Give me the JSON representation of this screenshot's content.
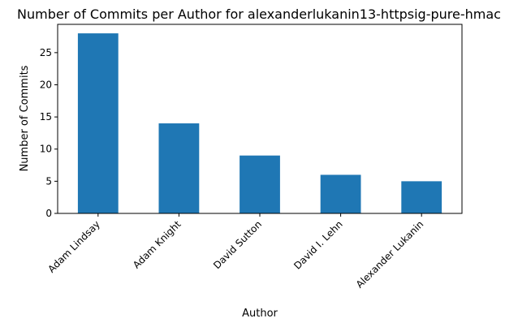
{
  "chart_data": {
    "type": "bar",
    "title": "Number of Commits per Author for alexanderlukanin13-httpsig-pure-hmac",
    "xlabel": "Author",
    "ylabel": "Number of Commits",
    "categories": [
      "Adam Lindsay",
      "Adam Knight",
      "David Sutton",
      "David I. Lehn",
      "Alexander Lukanin"
    ],
    "values": [
      28,
      14,
      9,
      6,
      5
    ],
    "ylim": [
      0,
      29.4
    ],
    "yticks": [
      0,
      5,
      10,
      15,
      20,
      25
    ],
    "bar_color": "#1f77b4",
    "grid": false,
    "legend": "none"
  }
}
